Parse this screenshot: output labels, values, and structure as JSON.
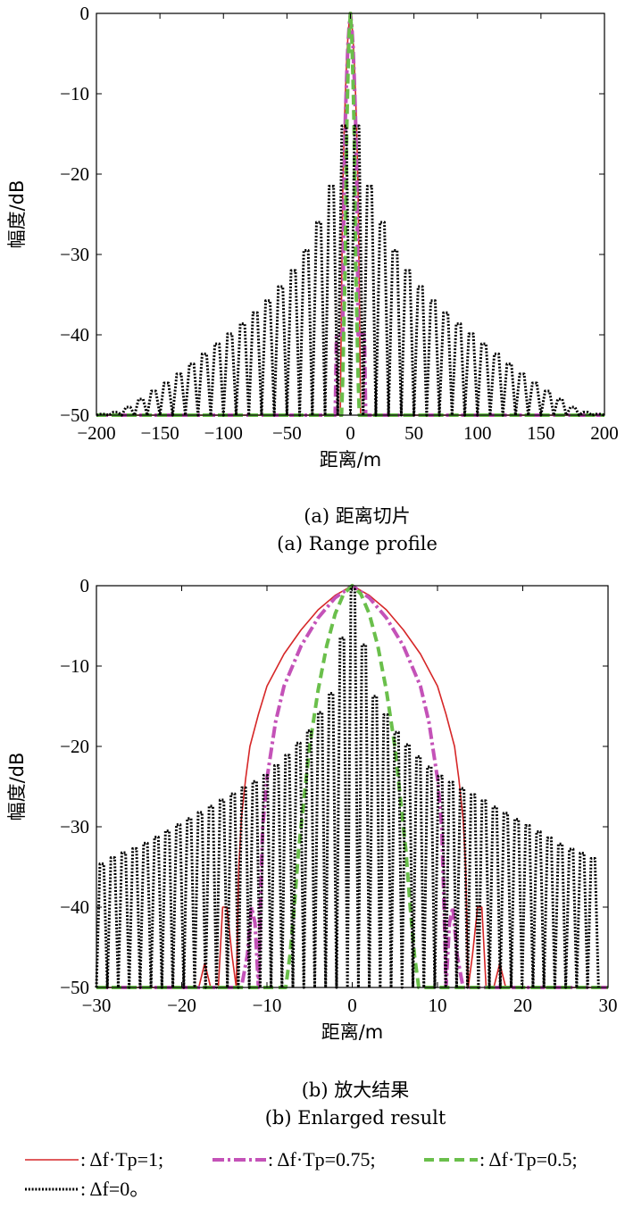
{
  "chart_data": [
    {
      "type": "line",
      "caption_cn": "(a) 距离切片",
      "caption_en": "(a) Range profile",
      "xlabel": "距离/m",
      "ylabel": "幅度/dB",
      "xlim": [
        -200,
        200
      ],
      "ylim": [
        -50,
        0
      ],
      "xticks": [
        "−200",
        "−150",
        "−100",
        "−50",
        "0",
        "50",
        "100",
        "150",
        "200"
      ],
      "yticks": [
        "0",
        "−10",
        "−20",
        "−30",
        "−40",
        "−50"
      ],
      "grid": false,
      "series": [
        {
          "style": "solid",
          "color": "#d62728",
          "x": [
            -200,
            -8,
            -7,
            -6,
            -5,
            -4,
            -3,
            -2,
            -1,
            0,
            1,
            2,
            3,
            4,
            5,
            6,
            7,
            8,
            200
          ],
          "y": [
            -50,
            -50,
            -35,
            -22,
            -15,
            -10,
            -6,
            -3,
            -1,
            0,
            -1,
            -3,
            -6,
            -10,
            -15,
            -22,
            -35,
            -50,
            -50
          ]
        },
        {
          "style": "dashdot",
          "color": "#c452b8",
          "x": [
            -200,
            -12,
            -11,
            -6,
            -5,
            -4,
            -3,
            -2,
            -1,
            0,
            1,
            2,
            3,
            4,
            5,
            6,
            11,
            12,
            200
          ],
          "y": [
            -50,
            -50,
            -40,
            -40,
            -20,
            -13,
            -8,
            -4,
            -1.5,
            0,
            -1.5,
            -4,
            -8,
            -13,
            -20,
            -40,
            -40,
            -50,
            -50
          ]
        },
        {
          "style": "dashed",
          "color": "#6abf4b",
          "x": [
            -200,
            -7,
            -6,
            -4,
            -3,
            -2,
            -1,
            0,
            1,
            2,
            3,
            4,
            6,
            7,
            200
          ],
          "y": [
            -50,
            -50,
            -45,
            -30,
            -15,
            -8,
            -2.5,
            0,
            -2.5,
            -8,
            -15,
            -30,
            -45,
            -50,
            -50
          ]
        },
        {
          "style": "dotted",
          "color": "#000000",
          "envelope": {
            "x": [
              0,
              2,
              5,
              10,
              20,
              30,
              40,
              60,
              80,
              100,
              120,
              140,
              160,
              180,
              200
            ],
            "y": [
              0,
              -9,
              -14,
              -19,
              -24,
              -28,
              -31,
              -35,
              -38,
              -40.5,
              -43,
              -45.5,
              -47.5,
              -49.5,
              -50
            ]
          }
        }
      ]
    },
    {
      "type": "line",
      "caption_cn": "(b) 放大结果",
      "caption_en": "(b) Enlarged result",
      "xlabel": "距离/m",
      "ylabel": "幅度/dB",
      "xlim": [
        -30,
        30
      ],
      "ylim": [
        -50,
        0
      ],
      "xticks": [
        "−30",
        "−20",
        "−10",
        "0",
        "10",
        "20",
        "30"
      ],
      "yticks": [
        "0",
        "−10",
        "−20",
        "−30",
        "−40",
        "−50"
      ],
      "grid": false,
      "series": [
        {
          "style": "solid",
          "color": "#d62728",
          "x": [
            -30,
            -18,
            -17.3,
            -16.6,
            -16.3,
            -15.7,
            -15.2,
            -14.7,
            -14.1,
            -13.6,
            -13.3,
            -13,
            -12.5,
            -12,
            -11,
            -10,
            -8,
            -6,
            -4,
            -2,
            0,
            2,
            4,
            6,
            8,
            10,
            11,
            12,
            12.5,
            13,
            13.3,
            13.6,
            14.1,
            14.7,
            15.2,
            15.7,
            16.3,
            16.6,
            17.3,
            18,
            30
          ],
          "y": [
            -50,
            -50,
            -47,
            -50,
            -50,
            -50,
            -40,
            -40,
            -46,
            -50,
            -35,
            -29,
            -24,
            -20,
            -16,
            -12.5,
            -8.5,
            -5.5,
            -3,
            -1.2,
            0,
            -1.2,
            -3,
            -5.5,
            -8.5,
            -12.5,
            -16,
            -20,
            -24,
            -29,
            -35,
            -50,
            -46,
            -40,
            -40,
            -50,
            -50,
            -50,
            -47,
            -50,
            -50
          ]
        },
        {
          "style": "dashdot",
          "color": "#c452b8",
          "x": [
            -30,
            -13,
            -12.3,
            -11.8,
            -11.4,
            -11,
            -10.8,
            -10.5,
            -10,
            -9,
            -8,
            -6,
            -4,
            -2,
            0,
            2,
            4,
            6,
            8,
            9,
            10,
            10.5,
            10.8,
            11,
            11.4,
            11.8,
            12.3,
            13,
            30
          ],
          "y": [
            -50,
            -50,
            -46,
            -40,
            -42,
            -50,
            -41,
            -30,
            -24,
            -17,
            -12.5,
            -7.5,
            -4,
            -1.5,
            0,
            -1.5,
            -4,
            -7.5,
            -12.5,
            -17,
            -24,
            -30,
            -41,
            -50,
            -42,
            -40,
            -46,
            -50,
            -50
          ]
        },
        {
          "style": "dashed",
          "color": "#6abf4b",
          "x": [
            -30,
            -7.8,
            -7.3,
            -6.8,
            -6.3,
            -5.6,
            -5,
            -4,
            -3,
            -2,
            -1,
            0,
            1,
            2,
            3,
            4,
            5,
            5.6,
            6.3,
            6.8,
            7.3,
            7.8,
            30
          ],
          "y": [
            -50,
            -50,
            -46,
            -40,
            -33,
            -26,
            -20,
            -13,
            -7.5,
            -3.5,
            -1,
            0,
            -1,
            -3.5,
            -7.5,
            -13,
            -20,
            -26,
            -33,
            -40,
            -46,
            -50,
            -50
          ]
        },
        {
          "style": "dotted",
          "color": "#000000",
          "envelope": {
            "x": [
              0,
              2.5,
              5,
              7.5,
              10,
              12.5,
              15,
              17.5,
              20,
              22.5,
              25,
              27.5,
              30
            ],
            "y": [
              0,
              -13.5,
              -18,
              -21,
              -23.5,
              -25,
              -26.5,
              -28,
              -29.5,
              -31,
              -32.5,
              -33.5,
              -35
            ]
          }
        }
      ]
    }
  ],
  "legend": {
    "items": [
      {
        "label": ": Δf·Tp=1;",
        "style": "solid",
        "color": "#d62728"
      },
      {
        "label": ": Δf·Tp=0.75;",
        "style": "dashdot",
        "color": "#c452b8"
      },
      {
        "label": ": Δf·Tp=0.5;",
        "style": "dashed",
        "color": "#6abf4b"
      },
      {
        "label": ": Δf=0。",
        "style": "dotted",
        "color": "#000000"
      }
    ]
  }
}
